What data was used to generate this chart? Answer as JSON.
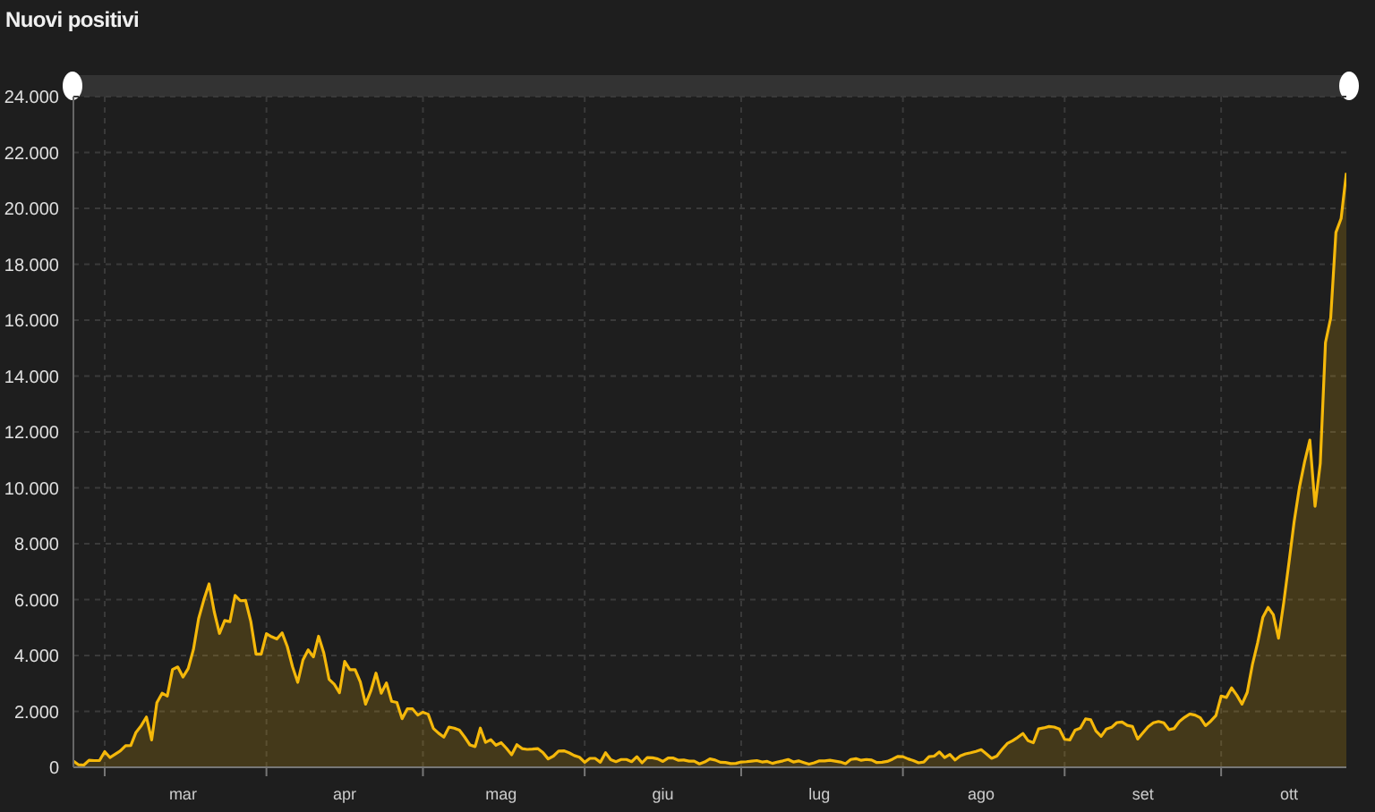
{
  "chart_data": {
    "type": "area",
    "title": "Nuovi positivi",
    "color": "#f5b80a",
    "grid": true,
    "x": [
      "--02-24",
      "--02-25",
      "--02-26",
      "--02-27",
      "--02-28",
      "--02-29",
      "--03-01",
      "--03-02",
      "--03-03",
      "--03-04",
      "--03-05",
      "--03-06",
      "--03-07",
      "--03-08",
      "--03-09",
      "--03-10",
      "--03-11",
      "--03-12",
      "--03-13",
      "--03-14",
      "--03-15",
      "--03-16",
      "--03-17",
      "--03-18",
      "--03-19",
      "--03-20",
      "--03-21",
      "--03-22",
      "--03-23",
      "--03-24",
      "--03-25",
      "--03-26",
      "--03-27",
      "--03-28",
      "--03-29",
      "--03-30",
      "--03-31",
      "--04-01",
      "--04-02",
      "--04-03",
      "--04-04",
      "--04-05",
      "--04-06",
      "--04-07",
      "--04-08",
      "--04-09",
      "--04-10",
      "--04-11",
      "--04-12",
      "--04-13",
      "--04-14",
      "--04-15",
      "--04-16",
      "--04-17",
      "--04-18",
      "--04-19",
      "--04-20",
      "--04-21",
      "--04-22",
      "--04-23",
      "--04-24",
      "--04-25",
      "--04-26",
      "--04-27",
      "--04-28",
      "--04-29",
      "--04-30",
      "--05-01",
      "--05-02",
      "--05-03",
      "--05-04",
      "--05-05",
      "--05-06",
      "--05-07",
      "--05-08",
      "--05-09",
      "--05-10",
      "--05-11",
      "--05-12",
      "--05-13",
      "--05-14",
      "--05-15",
      "--05-16",
      "--05-17",
      "--05-18",
      "--05-19",
      "--05-20",
      "--05-21",
      "--05-22",
      "--05-23",
      "--05-24",
      "--05-25",
      "--05-26",
      "--05-27",
      "--05-28",
      "--05-29",
      "--05-30",
      "--05-31",
      "--06-01",
      "--06-02",
      "--06-03",
      "--06-04",
      "--06-05",
      "--06-06",
      "--06-07",
      "--06-08",
      "--06-09",
      "--06-10",
      "--06-11",
      "--06-12",
      "--06-13",
      "--06-14",
      "--06-15",
      "--06-16",
      "--06-17",
      "--06-18",
      "--06-19",
      "--06-20",
      "--06-21",
      "--06-22",
      "--06-23",
      "--06-24",
      "--06-25",
      "--06-26",
      "--06-27",
      "--06-28",
      "--06-29",
      "--06-30",
      "--07-01",
      "--07-02",
      "--07-03",
      "--07-04",
      "--07-05",
      "--07-06",
      "--07-07",
      "--07-08",
      "--07-09",
      "--07-10",
      "--07-11",
      "--07-12",
      "--07-13",
      "--07-14",
      "--07-15",
      "--07-16",
      "--07-17",
      "--07-18",
      "--07-19",
      "--07-20",
      "--07-21",
      "--07-22",
      "--07-23",
      "--07-24",
      "--07-25",
      "--07-26",
      "--07-27",
      "--07-28",
      "--07-29",
      "--07-30",
      "--07-31",
      "--08-01",
      "--08-02",
      "--08-03",
      "--08-04",
      "--08-05",
      "--08-06",
      "--08-07",
      "--08-08",
      "--08-09",
      "--08-10",
      "--08-11",
      "--08-12",
      "--08-13",
      "--08-14",
      "--08-15",
      "--08-16",
      "--08-17",
      "--08-18",
      "--08-19",
      "--08-20",
      "--08-21",
      "--08-22",
      "--08-23",
      "--08-24",
      "--08-25",
      "--08-26",
      "--08-27",
      "--08-28",
      "--08-29",
      "--08-30",
      "--08-31",
      "--09-01",
      "--09-02",
      "--09-03",
      "--09-04",
      "--09-05",
      "--09-06",
      "--09-07",
      "--09-08",
      "--09-09",
      "--09-10",
      "--09-11",
      "--09-12",
      "--09-13",
      "--09-14",
      "--09-15",
      "--09-16",
      "--09-17",
      "--09-18",
      "--09-19",
      "--09-20",
      "--09-21",
      "--09-22",
      "--09-23",
      "--09-24",
      "--09-25",
      "--09-26",
      "--09-27",
      "--09-28",
      "--09-29",
      "--09-30",
      "--10-01",
      "--10-02",
      "--10-03",
      "--10-04",
      "--10-05",
      "--10-06",
      "--10-07",
      "--10-08",
      "--10-09",
      "--10-10",
      "--10-11",
      "--10-12",
      "--10-13",
      "--10-14",
      "--10-15",
      "--10-16",
      "--10-17",
      "--10-18",
      "--10-19",
      "--10-20",
      "--10-21",
      "--10-22",
      "--10-23",
      "--10-24",
      "--10-25"
    ],
    "values": [
      220,
      90,
      80,
      250,
      240,
      240,
      560,
      350,
      470,
      590,
      770,
      780,
      1250,
      1490,
      1800,
      980,
      2310,
      2650,
      2550,
      3500,
      3590,
      3230,
      3530,
      4210,
      5320,
      5990,
      6560,
      5560,
      4790,
      5250,
      5210,
      6150,
      5960,
      5970,
      5220,
      4050,
      4050,
      4780,
      4670,
      4590,
      4810,
      4320,
      3600,
      3040,
      3840,
      4200,
      3950,
      4690,
      4090,
      3150,
      2970,
      2670,
      3790,
      3490,
      3490,
      3050,
      2260,
      2730,
      3370,
      2650,
      3020,
      2360,
      2320,
      1740,
      2090,
      2090,
      1870,
      1970,
      1900,
      1390,
      1220,
      1080,
      1440,
      1400,
      1330,
      1080,
      800,
      740,
      1400,
      890,
      990,
      790,
      880,
      680,
      450,
      810,
      670,
      640,
      650,
      670,
      530,
      300,
      400,
      580,
      590,
      520,
      420,
      360,
      180,
      320,
      320,
      180,
      520,
      270,
      200,
      280,
      280,
      200,
      380,
      160,
      350,
      340,
      300,
      210,
      330,
      330,
      250,
      260,
      220,
      220,
      120,
      190,
      300,
      260,
      180,
      170,
      130,
      140,
      190,
      200,
      220,
      240,
      190,
      210,
      140,
      190,
      230,
      280,
      190,
      230,
      170,
      110,
      160,
      230,
      230,
      250,
      220,
      190,
      130,
      280,
      310,
      250,
      280,
      260,
      170,
      180,
      210,
      290,
      390,
      380,
      300,
      240,
      160,
      190,
      380,
      400,
      550,
      350,
      460,
      260,
      410,
      480,
      520,
      570,
      630,
      480,
      320,
      400,
      640,
      850,
      950,
      1070,
      1210,
      950,
      880,
      1370,
      1410,
      1460,
      1440,
      1370,
      1000,
      980,
      1330,
      1400,
      1730,
      1700,
      1300,
      1110,
      1370,
      1430,
      1600,
      1620,
      1500,
      1460,
      1010,
      1230,
      1450,
      1590,
      1640,
      1590,
      1350,
      1390,
      1640,
      1790,
      1910,
      1870,
      1770,
      1490,
      1650,
      1850,
      2550,
      2500,
      2840,
      2580,
      2260,
      2680,
      3680,
      4460,
      5370,
      5720,
      5460,
      4620,
      5900,
      7330,
      8800,
      10010,
      10930,
      11710,
      9340,
      10870,
      15200,
      16080,
      19140,
      19640,
      21270
    ],
    "xlim": [
      "--02-24",
      "--10-25"
    ],
    "xticks": [
      {
        "value": "--03-01",
        "label": null
      },
      {
        "value": "--03-16",
        "label": "mar"
      },
      {
        "value": "--04-01",
        "label": null
      },
      {
        "value": "--04-16",
        "label": "apr"
      },
      {
        "value": "--05-01",
        "label": null
      },
      {
        "value": "--05-16",
        "label": "mag"
      },
      {
        "value": "--06-01",
        "label": null
      },
      {
        "value": "--06-16",
        "label": "giu"
      },
      {
        "value": "--07-01",
        "label": null
      },
      {
        "value": "--07-16",
        "label": "lug"
      },
      {
        "value": "--08-01",
        "label": null
      },
      {
        "value": "--08-16",
        "label": "ago"
      },
      {
        "value": "--09-01",
        "label": null
      },
      {
        "value": "--09-16",
        "label": "set"
      },
      {
        "value": "--10-01",
        "label": null
      },
      {
        "value": "--10-14",
        "label": "ott"
      }
    ],
    "ylim": [
      0,
      24000
    ],
    "yticks": [
      0,
      {
        "value": 2000,
        "label": "2.000"
      },
      {
        "value": 4000,
        "label": "4.000"
      },
      {
        "value": 6000,
        "label": "6.000"
      },
      {
        "value": 8000,
        "label": "8.000"
      },
      {
        "value": 10000,
        "label": "10.000"
      },
      {
        "value": 12000,
        "label": "12.000"
      },
      {
        "value": 14000,
        "label": "14.000"
      },
      {
        "value": 16000,
        "label": "16.000"
      },
      {
        "value": 18000,
        "label": "18.000"
      },
      {
        "value": 20000,
        "label": "20.000"
      },
      {
        "value": 22000,
        "label": "22.000"
      },
      {
        "value": 24000,
        "label": "24.000"
      }
    ]
  }
}
